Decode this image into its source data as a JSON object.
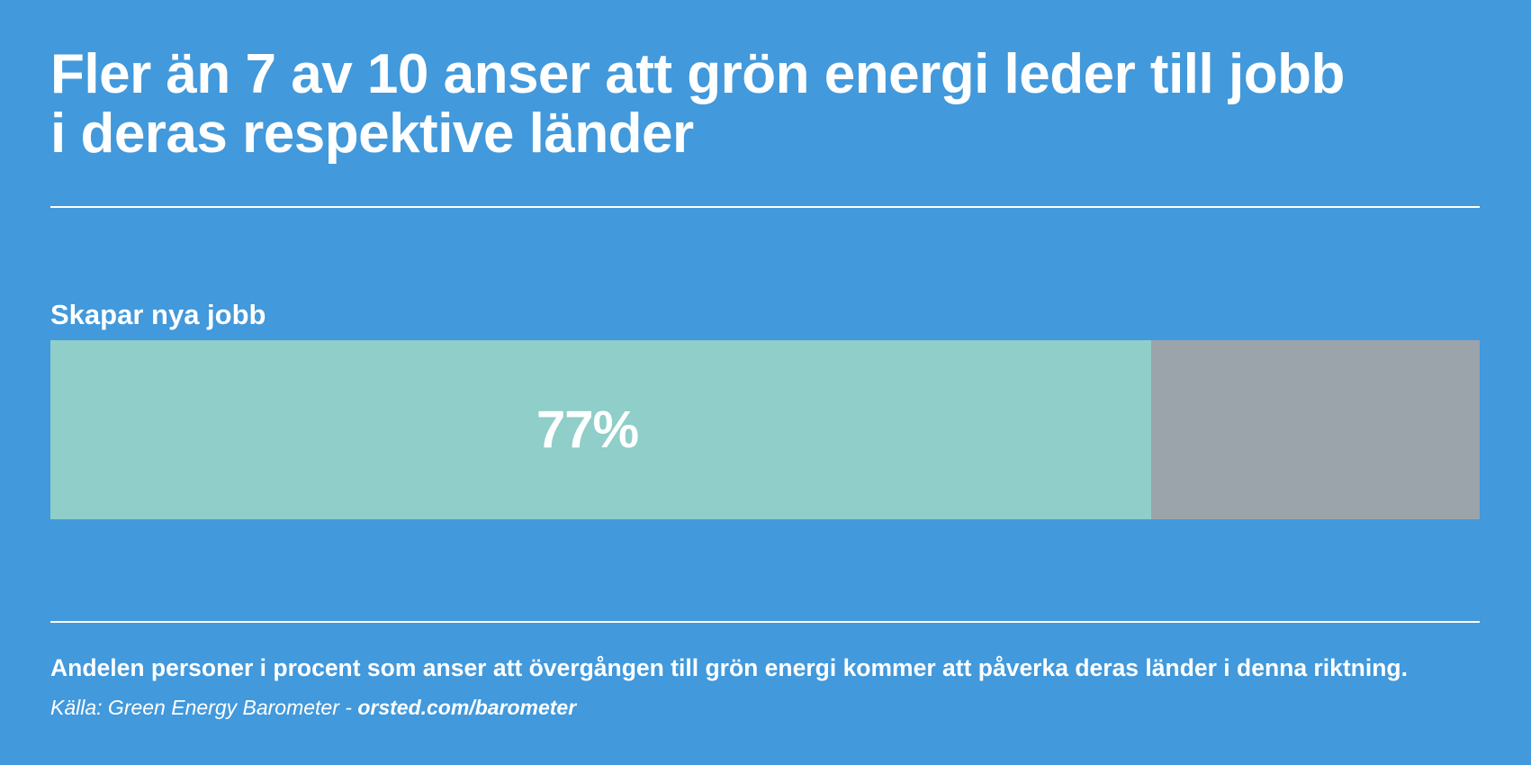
{
  "colors": {
    "background": "#4299db",
    "fill": "#8fcec9",
    "remainder": "#9ba3ab",
    "text": "#ffffff"
  },
  "title_lines": [
    "Fler än 7 av 10 anser att grön energi leder till jobb",
    "i deras respektive länder"
  ],
  "chart_data": {
    "type": "bar",
    "orientation": "horizontal",
    "stacked": true,
    "xlim": [
      0,
      100
    ],
    "categories": [
      "Skapar nya jobb"
    ],
    "series": [
      {
        "values": [
          77
        ]
      }
    ],
    "data_labels": [
      "77%"
    ],
    "grid": false,
    "legend": "none"
  },
  "footer": {
    "note": "Andelen personer i procent som anser att övergången till grön energi kommer att påverka deras länder i denna riktning.",
    "source_prefix": "Källa: Green Energy Barometer - ",
    "source_link": "orsted.com/barometer"
  }
}
